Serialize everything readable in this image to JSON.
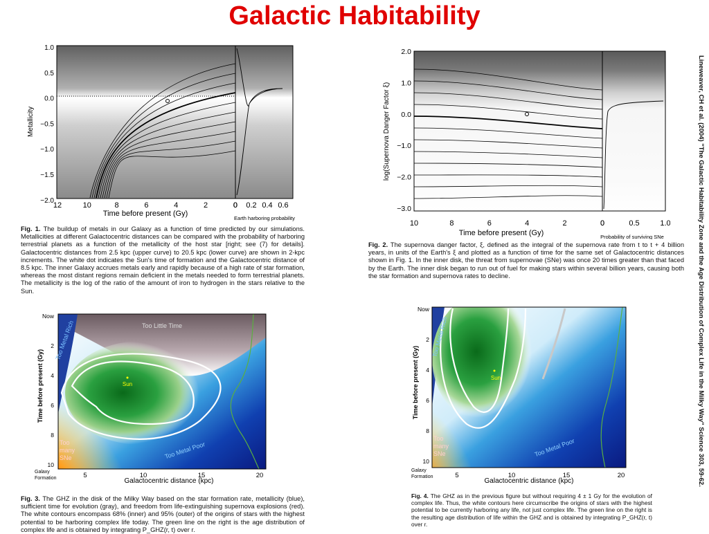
{
  "title": "Galactic Habitability",
  "citation": "Lineweaver, CH et al. (2004) \"The Galactic Habitability Zone and the Age Distribution of Complex Life in the Milky Way\" Science 303, 59-62.",
  "fig1": {
    "caption_label": "Fig. 1.",
    "caption": "The buildup of metals in our Galaxy as a function of time predicted by our simulations. Metallicities at different Galactocentric distances can be compared with the probability of harboring terrestrial planets as a function of the metallicity of the host star [right; see (7) for details]. Galactocentric distances from 2.5 kpc (upper curve) to 20.5 kpc (lower curve) are shown in 2-kpc increments. The white dot indicates the Sun's time of formation and the Galactocentric distance of 8.5 kpc. The inner Galaxy accrues metals early and rapidly because of a high rate of star formation, whereas the most distant regions remain deficient in the metals needed to form terrestrial planets. The metallicity is the log of the ratio of the amount of iron to hydrogen in the stars relative to the Sun.",
    "ylabel": "Metallicity",
    "xlabel": "Time before present (Gy)",
    "right_xlabel": "Earth harboring probability",
    "yticks": [
      "1.0",
      "0.5",
      "0.0",
      "−0.5",
      "−1.0",
      "−1.5",
      "−2.0"
    ],
    "xticks": [
      "12",
      "10",
      "8",
      "6",
      "4",
      "2",
      "0"
    ],
    "right_xticks": [
      "0.2",
      "0.4",
      "0.6"
    ]
  },
  "fig2": {
    "caption_label": "Fig. 2.",
    "caption": "The supernova danger factor, ξ, defined as the integral of the supernova rate from t to t + 4 billion years, in units of the Earth's ξ and plotted as a function of time for the same set of Galactocentric distances shown in Fig. 1. In the inner disk, the threat from supernovae (SNe) was once 20 times greater than that faced by the Earth. The inner disk began to run out of fuel for making stars within several billion years, causing both the star formation and supernova rates to decline.",
    "ylabel": "log(Supernova Danger Factor ξ)",
    "xlabel": "Time before present (Gy)",
    "right_xlabel": "Probability of surviving SNe",
    "yticks": [
      "2.0",
      "1.0",
      "0.0",
      "−1.0",
      "−2.0",
      "−3.0"
    ],
    "xticks": [
      "10",
      "8",
      "6",
      "4",
      "2",
      "0"
    ],
    "right_xticks": [
      "0.5",
      "1.0"
    ]
  },
  "fig3": {
    "caption_label": "Fig. 3.",
    "caption": "The GHZ in the disk of the Milky Way based on the star formation rate, metallicity (blue), sufficient time for evolution (gray), and freedom from life-extinguishing supernova explosions (red). The white contours encompass 68% (inner) and 95% (outer) of the origins of stars with the highest potential to be harboring complex life today. The green line on the right is the age distribution of complex life and is obtained by integrating P_GHZ(r, t) over r.",
    "ylabel": "Time before present (Gy)",
    "xlabel": "Galactocentric distance (kpc)",
    "yticks": [
      "Now",
      "2",
      "4",
      "6",
      "8",
      "10"
    ],
    "xticks": [
      "5",
      "10",
      "15",
      "20"
    ],
    "bottom_left": "Galaxy Formation",
    "labels": {
      "too_little_time": "Too Little Time",
      "too_metal_rich": "Too Metal Rich",
      "too_metal_poor": "Too Metal Poor",
      "too_many_sne": "Too many SNe",
      "sun": "Sun"
    }
  },
  "fig4": {
    "caption_label": "Fig. 4.",
    "caption": "The GHZ as in the previous figure but without requiring 4 ± 1 Gy for the evolution of complex life. Thus, the white contours here circumscribe the origins of stars with the highest potential to be currently harboring any life, not just complex life. The green line on the right is the resulting age distribution of life within the GHZ and is obtained by integrating P_GHZ(r, t) over r.",
    "ylabel": "Time before present (Gy)",
    "xlabel": "Galactocentric distance (kpc)",
    "yticks": [
      "Now",
      "2",
      "4",
      "6",
      "8",
      "10"
    ],
    "xticks": [
      "5",
      "10",
      "15",
      "20"
    ],
    "bottom_left": "Galaxy Formation",
    "labels": {
      "too_metal_rich": "Too Metal Rich",
      "too_metal_poor": "Too Metal Poor",
      "too_many_sne": "Too many SNe",
      "sun": "Sun"
    }
  }
}
